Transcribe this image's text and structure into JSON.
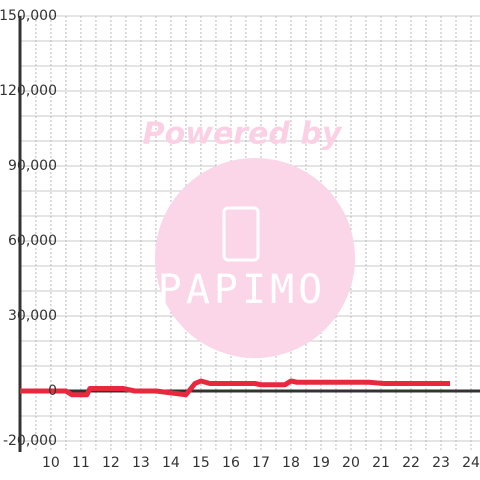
{
  "chart_data": {
    "type": "line",
    "watermark": [
      "Powered by",
      "PAPIMO"
    ],
    "x": [
      8.97,
      10.5,
      10.7,
      11.2,
      11.3,
      12.4,
      12.8,
      13.5,
      14.5,
      14.8,
      15.0,
      15.3,
      16.8,
      17.0,
      17.8,
      18.0,
      18.2,
      20.6,
      21.1,
      23.3
    ],
    "series": [
      {
        "color": "#e8293d",
        "values": [
          0,
          0,
          -1500,
          -1500,
          1000,
          1000,
          0,
          0,
          -1500,
          3000,
          4000,
          3000,
          3000,
          2500,
          2500,
          4000,
          3500,
          3500,
          3000,
          3000
        ]
      }
    ],
    "xlim": [
      8.97,
      24.3
    ],
    "xticks": [
      10,
      11,
      12,
      13,
      14,
      15,
      16,
      17,
      18,
      19,
      20,
      21,
      22,
      23,
      24
    ],
    "minor_xticks": [
      9.5,
      10.5,
      11.5,
      12.5,
      13.5,
      14.5,
      15.5,
      16.5,
      17.5,
      18.5,
      19.5,
      20.5,
      21.5,
      22.5,
      23.5
    ],
    "ylim": [
      -20000,
      150000
    ],
    "yticks": [
      {
        "value": -20000,
        "label": "-20,000"
      },
      0,
      {
        "value": 30000,
        "label": "30,000"
      },
      {
        "value": 60000,
        "label": "60,000"
      },
      {
        "value": 90000,
        "label": "90,000"
      },
      {
        "value": 120000,
        "label": "120,000"
      },
      {
        "value": 150000,
        "label": "150,000"
      }
    ],
    "minor_yticks": [
      -10000,
      10000,
      20000,
      40000,
      50000,
      70000,
      80000,
      100000,
      110000,
      130000,
      140000
    ],
    "grid": true
  }
}
